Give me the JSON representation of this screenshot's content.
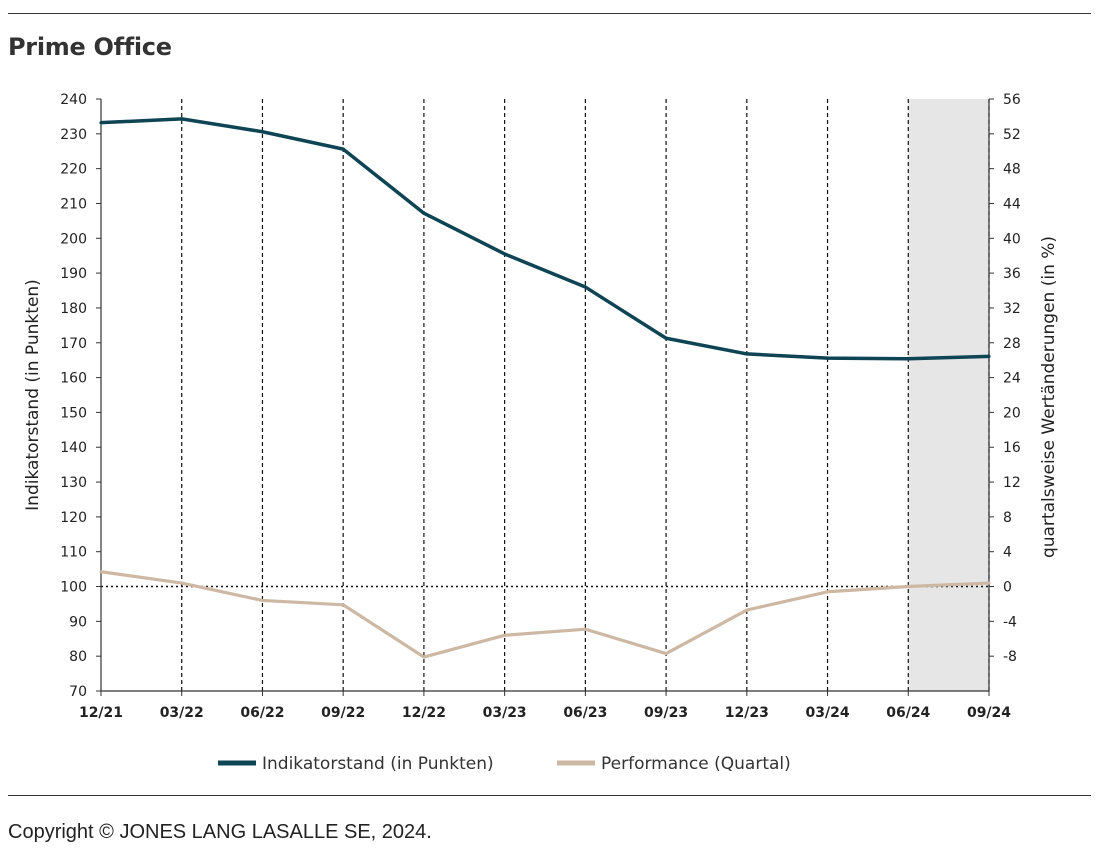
{
  "page": {
    "title": "Prime Office",
    "copyright": "Copyright © JONES LANG LASALLE SE, 2024."
  },
  "colors": {
    "index_line": "#0e4454",
    "performance_line": "#cdb8a4",
    "forecast_band": "#e6e6e6"
  },
  "chart_data": {
    "type": "line",
    "categories": [
      "12/21",
      "03/22",
      "06/22",
      "09/22",
      "12/22",
      "03/23",
      "06/23",
      "09/23",
      "12/23",
      "03/24",
      "06/24",
      "09/24"
    ],
    "xlabel": "",
    "ylabel": "Indikatorstand (in Punkten)",
    "y2label": "quartalsweise Wertänderungen (in %)",
    "ylim": [
      70,
      240
    ],
    "y_ticks": [
      70,
      80,
      90,
      100,
      110,
      120,
      130,
      140,
      150,
      160,
      170,
      180,
      190,
      200,
      210,
      220,
      230,
      240
    ],
    "y2lim": [
      -12,
      56
    ],
    "y2_ticks": [
      -8,
      -4,
      0,
      4,
      8,
      12,
      16,
      20,
      24,
      28,
      32,
      36,
      40,
      44,
      48,
      52,
      56
    ],
    "y2_tick_labels": [
      "-8",
      "-4",
      "0",
      "4",
      "8",
      "12",
      "16",
      "20",
      "24",
      "28",
      "32",
      "36",
      "40",
      "44",
      "48",
      "52",
      "56"
    ],
    "vertical_gridlines": "dashed",
    "zero_reference_line": "dotted",
    "shaded_period": [
      "06/24",
      "09/24"
    ],
    "legend_position": "bottom",
    "series": [
      {
        "name": "Indikatorstand (in Punkten)",
        "axis": "left",
        "values": [
          233.2,
          234.3,
          230.6,
          225.6,
          207.2,
          195.5,
          186.0,
          171.3,
          166.8,
          165.6,
          165.4,
          166.1
        ]
      },
      {
        "name": "Performance (Quartal)",
        "axis": "right",
        "values": [
          1.7,
          0.4,
          -1.6,
          -2.1,
          -8.1,
          -5.6,
          -4.9,
          -7.7,
          -2.7,
          -0.6,
          0.0,
          0.4
        ]
      }
    ]
  }
}
